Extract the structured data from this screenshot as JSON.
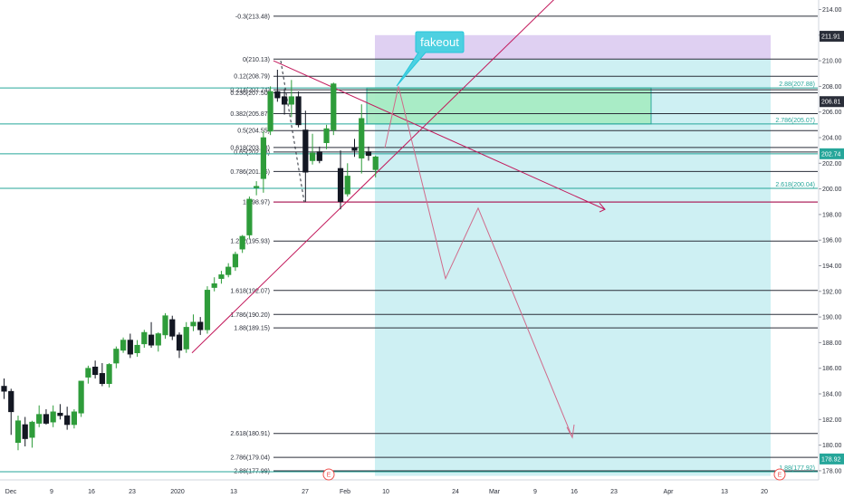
{
  "chart_data": {
    "type": "candlestick",
    "x_tick_labels": [
      "Dec",
      "9",
      "16",
      "23",
      "2020",
      "13",
      "27",
      "Feb",
      "10",
      "24",
      "Mar",
      "9",
      "16",
      "23",
      "Apr",
      "13",
      "20"
    ],
    "y_ticks": [
      178,
      180,
      182,
      184,
      186,
      188,
      190,
      192,
      194,
      196,
      198,
      200,
      202,
      204,
      206,
      208,
      210,
      212,
      214
    ],
    "ylim": [
      177.4,
      214.8
    ],
    "candles": [
      {
        "o": 184.6,
        "h": 185.2,
        "l": 183.6,
        "c": 184.2
      },
      {
        "o": 184.2,
        "h": 184.4,
        "l": 180.8,
        "c": 182.6
      },
      {
        "o": 180.2,
        "h": 182.3,
        "l": 179.6,
        "c": 181.9
      },
      {
        "o": 181.6,
        "h": 182.2,
        "l": 179.9,
        "c": 180.5
      },
      {
        "o": 180.6,
        "h": 181.9,
        "l": 179.8,
        "c": 181.8
      },
      {
        "o": 181.7,
        "h": 183.1,
        "l": 181.4,
        "c": 182.4
      },
      {
        "o": 182.4,
        "h": 182.8,
        "l": 181.6,
        "c": 181.7
      },
      {
        "o": 181.8,
        "h": 183.1,
        "l": 181.4,
        "c": 182.6
      },
      {
        "o": 182.5,
        "h": 183.2,
        "l": 182.0,
        "c": 182.3
      },
      {
        "o": 182.3,
        "h": 183.0,
        "l": 181.2,
        "c": 181.6
      },
      {
        "o": 181.6,
        "h": 182.8,
        "l": 181.3,
        "c": 182.6
      },
      {
        "o": 182.5,
        "h": 185.0,
        "l": 182.2,
        "c": 185.0
      },
      {
        "o": 185.3,
        "h": 186.2,
        "l": 184.8,
        "c": 186.0
      },
      {
        "o": 186.1,
        "h": 186.6,
        "l": 185.2,
        "c": 185.5
      },
      {
        "o": 185.6,
        "h": 186.4,
        "l": 184.6,
        "c": 184.8
      },
      {
        "o": 184.8,
        "h": 186.4,
        "l": 184.5,
        "c": 186.3
      },
      {
        "o": 186.4,
        "h": 187.7,
        "l": 186.0,
        "c": 187.5
      },
      {
        "o": 187.4,
        "h": 188.4,
        "l": 187.2,
        "c": 188.2
      },
      {
        "o": 188.2,
        "h": 188.7,
        "l": 186.8,
        "c": 187.1
      },
      {
        "o": 187.2,
        "h": 188.2,
        "l": 186.9,
        "c": 187.8
      },
      {
        "o": 187.9,
        "h": 189.0,
        "l": 187.6,
        "c": 188.8
      },
      {
        "o": 188.6,
        "h": 189.6,
        "l": 187.6,
        "c": 187.8
      },
      {
        "o": 187.8,
        "h": 188.8,
        "l": 187.3,
        "c": 188.7
      },
      {
        "o": 188.6,
        "h": 190.3,
        "l": 188.3,
        "c": 190.1
      },
      {
        "o": 189.8,
        "h": 190.1,
        "l": 188.2,
        "c": 188.5
      },
      {
        "o": 188.6,
        "h": 188.8,
        "l": 186.8,
        "c": 187.4
      },
      {
        "o": 187.5,
        "h": 189.6,
        "l": 187.2,
        "c": 189.2
      },
      {
        "o": 189.3,
        "h": 190.2,
        "l": 188.9,
        "c": 189.6
      },
      {
        "o": 189.6,
        "h": 190.0,
        "l": 188.6,
        "c": 189.0
      },
      {
        "o": 189.0,
        "h": 192.4,
        "l": 188.7,
        "c": 192.1
      },
      {
        "o": 192.3,
        "h": 193.1,
        "l": 192.0,
        "c": 192.6
      },
      {
        "o": 193.0,
        "h": 193.6,
        "l": 192.6,
        "c": 193.3
      },
      {
        "o": 193.3,
        "h": 194.2,
        "l": 193.1,
        "c": 193.9
      },
      {
        "o": 193.9,
        "h": 195.1,
        "l": 193.6,
        "c": 194.9
      },
      {
        "o": 195.3,
        "h": 196.4,
        "l": 195.0,
        "c": 196.3
      },
      {
        "o": 196.4,
        "h": 199.4,
        "l": 196.1,
        "c": 199.2
      },
      {
        "o": 200.1,
        "h": 200.6,
        "l": 199.5,
        "c": 200.2
      },
      {
        "o": 200.8,
        "h": 204.5,
        "l": 199.7,
        "c": 204.0
      },
      {
        "o": 204.5,
        "h": 208.0,
        "l": 204.2,
        "c": 207.6
      },
      {
        "o": 207.6,
        "h": 209.3,
        "l": 206.8,
        "c": 207.1
      },
      {
        "o": 207.2,
        "h": 207.8,
        "l": 205.8,
        "c": 206.6
      },
      {
        "o": 206.6,
        "h": 208.5,
        "l": 205.6,
        "c": 207.2
      },
      {
        "o": 207.2,
        "h": 207.6,
        "l": 204.8,
        "c": 205.0
      },
      {
        "o": 204.6,
        "h": 206.1,
        "l": 199.0,
        "c": 201.3
      },
      {
        "o": 202.2,
        "h": 204.3,
        "l": 201.9,
        "c": 202.8
      },
      {
        "o": 202.9,
        "h": 203.3,
        "l": 202.0,
        "c": 202.2
      },
      {
        "o": 203.6,
        "h": 205.0,
        "l": 203.1,
        "c": 204.7
      },
      {
        "o": 204.6,
        "h": 208.3,
        "l": 204.2,
        "c": 208.2
      },
      {
        "o": 201.6,
        "h": 203.0,
        "l": 198.4,
        "c": 199.0
      },
      {
        "o": 199.6,
        "h": 202.0,
        "l": 199.4,
        "c": 201.0
      },
      {
        "o": 203.2,
        "h": 203.9,
        "l": 202.5,
        "c": 203.0
      },
      {
        "o": 202.4,
        "h": 206.6,
        "l": 201.2,
        "c": 205.5
      },
      {
        "o": 202.9,
        "h": 203.3,
        "l": 202.2,
        "c": 202.6
      },
      {
        "o": 201.5,
        "h": 202.6,
        "l": 200.9,
        "c": 202.5
      }
    ],
    "fib_left": [
      {
        "label": "-0.3(213.48)",
        "value": 213.48
      },
      {
        "label": "0(210.13)",
        "value": 210.13
      },
      {
        "label": "0.12(208.79)",
        "value": 208.79
      },
      {
        "label": "0.214(207.74)",
        "value": 207.74
      },
      {
        "label": "0.236(207.50)",
        "value": 207.5
      },
      {
        "label": "0.382(205.87)",
        "value": 205.87
      },
      {
        "label": "0.5(204.55)",
        "value": 204.55
      },
      {
        "label": "0.618(203.23)",
        "value": 203.23
      },
      {
        "label": "0.65(202.88)",
        "value": 202.88
      },
      {
        "label": "0.786(201.36)",
        "value": 201.36
      },
      {
        "label": "1(198.97)",
        "value": 198.97
      },
      {
        "label": "1.272(195.93)",
        "value": 195.93
      },
      {
        "label": "1.618(192.07)",
        "value": 192.07
      },
      {
        "label": "1.786(190.20)",
        "value": 190.2
      },
      {
        "label": "1.88(189.15)",
        "value": 189.15
      },
      {
        "label": "2.618(180.91)",
        "value": 180.91
      },
      {
        "label": "2.786(179.04)",
        "value": 179.04
      },
      {
        "label": "2.88(177.99)",
        "value": 177.99
      }
    ],
    "fib_right": [
      {
        "label": "2.88(207.88)",
        "value": 207.88
      },
      {
        "label": "2.786(205.07)",
        "value": 205.07
      },
      {
        "label": "2.618(200.04)",
        "value": 200.04
      },
      {
        "label": "1.88(177.92)",
        "value": 177.92
      }
    ],
    "price_tags": [
      {
        "label": "211.91",
        "value": 211.91,
        "color": "#2a2e39"
      },
      {
        "label": "206.81",
        "value": 206.81,
        "color": "#2a2e39"
      },
      {
        "label": "202.74",
        "value": 202.74,
        "color": "#26a69a"
      },
      {
        "label": "178.92",
        "value": 178.92,
        "color": "#26a69a"
      }
    ],
    "event_markers": [
      "E",
      "E"
    ],
    "callout": "fakeout",
    "colors": {
      "up": "#2e9c3a",
      "down": "#131722",
      "fib_line": "#2a2e39",
      "teal_line": "#26a69a",
      "stop_zone": "#d9c8f0",
      "target_zone": "#c9eef2",
      "entry_zone": "#a8ecc4",
      "trend_line": "#c2185b",
      "projection": "#d06a8a",
      "callout_bg": "#4dd0e1"
    }
  }
}
